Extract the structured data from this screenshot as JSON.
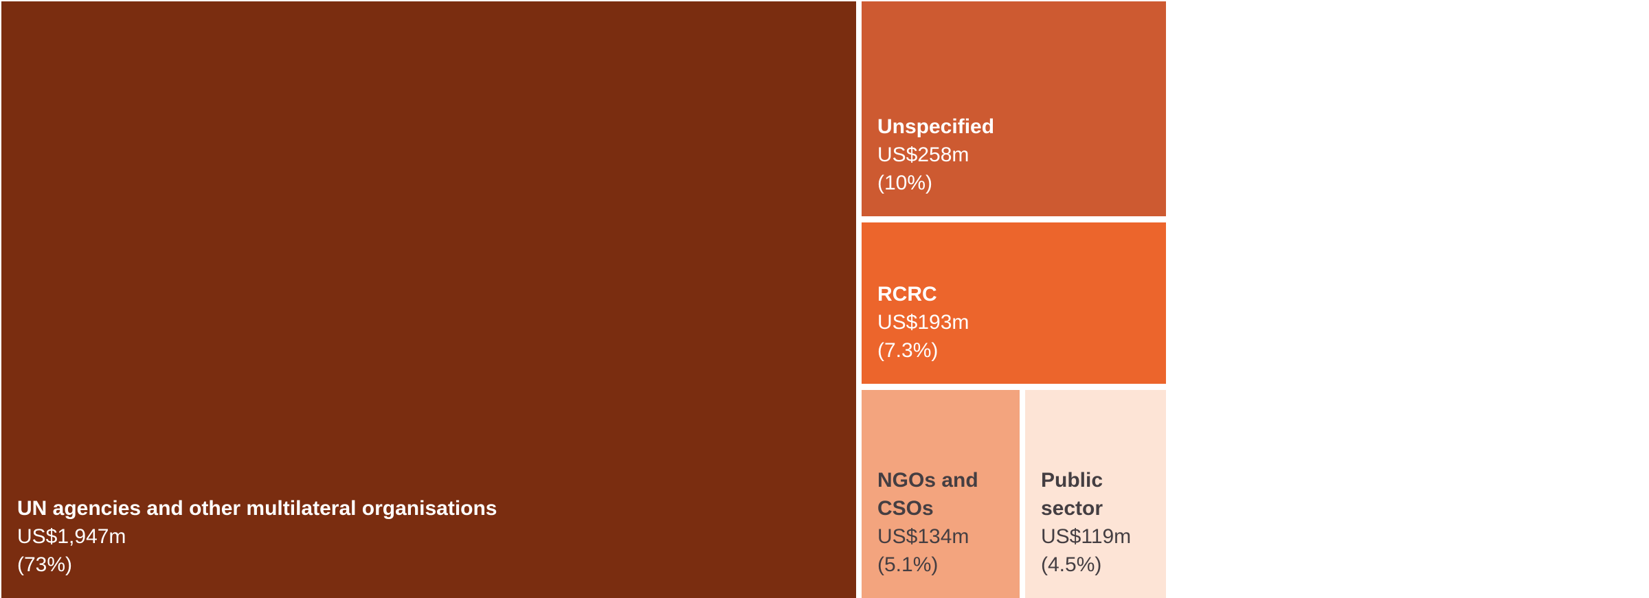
{
  "chart_data": {
    "type": "treemap",
    "title": "",
    "items": [
      {
        "name": "UN agencies and other multilateral organisations",
        "value": 1947,
        "value_label": "US$1,947m",
        "share_label": "(73%)",
        "color": "#7a2d10",
        "text_color": "light"
      },
      {
        "name": "Unspecified",
        "value": 258,
        "value_label": "US$258m",
        "share_label": "(10%)",
        "color": "#cd5a31",
        "text_color": "light"
      },
      {
        "name": "RCRC",
        "value": 193,
        "value_label": "US$193m",
        "share_label": "(7.3%)",
        "color": "#ec652c",
        "text_color": "light"
      },
      {
        "name": "NGOs and CSOs",
        "value": 134,
        "value_label": "US$134m",
        "share_label": "(5.1%)",
        "color": "#f3a47e",
        "text_color": "dark"
      },
      {
        "name": "Public sector",
        "value": 119,
        "value_label": "US$119m",
        "share_label": "(4.5%)",
        "color": "#fde4d6",
        "text_color": "dark"
      }
    ]
  }
}
